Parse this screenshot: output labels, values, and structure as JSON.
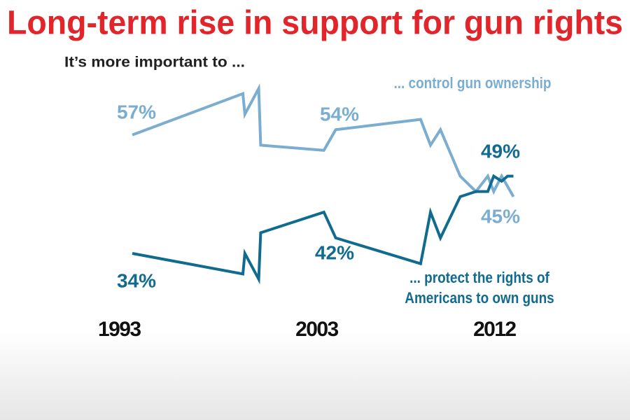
{
  "chart_data": {
    "type": "line",
    "title": "Long-term rise in support for gun rights",
    "subtitle": "It’s more important to ...",
    "x": [
      1993,
      1998.6,
      1998.7,
      1999.4,
      1999.5,
      2002.7,
      2003.3,
      2007.6,
      2008.1,
      2008.6,
      2009.6,
      2010.4,
      2011,
      2011.3,
      2011.7,
      2012,
      2012.3
    ],
    "xticks": [
      1993,
      2003,
      2012
    ],
    "xlim": [
      1986.3,
      2018.2
    ],
    "ylim": [
      20,
      70
    ],
    "series": [
      {
        "name": "... control gun ownership",
        "color": "#7badd0",
        "values": [
          57,
          65,
          61,
          66,
          55,
          54,
          58,
          60,
          55,
          58,
          49,
          46,
          49,
          46,
          49,
          47,
          45
        ],
        "value_labels": [
          "57%",
          null,
          null,
          null,
          null,
          "54%",
          null,
          null,
          null,
          null,
          null,
          null,
          null,
          null,
          null,
          null,
          "45%"
        ]
      },
      {
        "name": "... protect the rights of Americans to own guns",
        "color": "#116b8f",
        "values": [
          34,
          30,
          34,
          29,
          38,
          42,
          37,
          32,
          42,
          37,
          45,
          46,
          46,
          49,
          48,
          49,
          49
        ],
        "value_labels": [
          "34%",
          null,
          null,
          null,
          null,
          "42%",
          null,
          null,
          null,
          null,
          null,
          null,
          null,
          null,
          null,
          null,
          "49%"
        ]
      }
    ]
  }
}
